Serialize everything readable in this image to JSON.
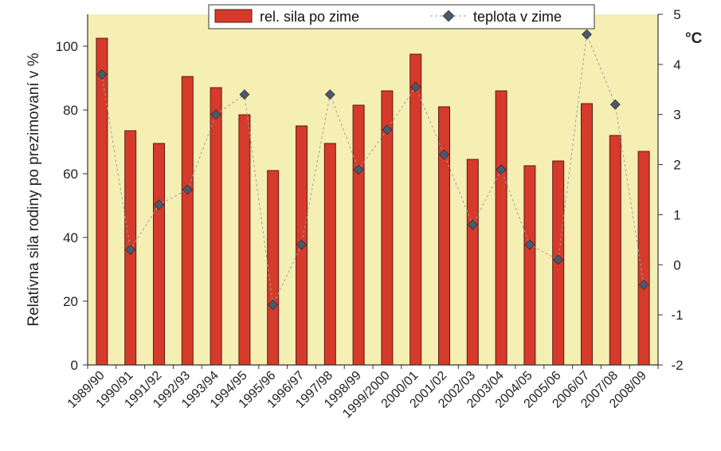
{
  "chart_data": {
    "type": "bar",
    "categories": [
      "1989/90",
      "1990/91",
      "1991/92",
      "1992/93",
      "1993/94",
      "1994/95",
      "1995/96",
      "1996/97",
      "1997/98",
      "1998/99",
      "1999/2000",
      "2000/01",
      "2001/02",
      "2002/03",
      "2003/04",
      "2004/05",
      "2005/06",
      "2006/07",
      "2007/08",
      "2008/09"
    ],
    "series": [
      {
        "name": "rel. sila po zime",
        "kind": "bar",
        "axis": "left",
        "color": "#d63a2a",
        "values": [
          102.5,
          73.5,
          69.5,
          90.5,
          87,
          78.5,
          61,
          75,
          69.5,
          81.5,
          86,
          97.5,
          81,
          64.5,
          86,
          62.5,
          64,
          82,
          72,
          67
        ]
      },
      {
        "name": "teplota v zime",
        "kind": "line-marker",
        "axis": "right",
        "color": "#4a5a6e",
        "values": [
          3.8,
          0.3,
          1.2,
          1.5,
          3.0,
          3.4,
          -0.8,
          0.4,
          3.4,
          1.9,
          2.7,
          3.55,
          2.2,
          0.8,
          1.9,
          0.4,
          0.1,
          4.6,
          3.2,
          -0.4
        ]
      }
    ],
    "ylabel": "Relatívna sila rodiny po prezimovaní v %",
    "ylim": [
      0,
      110
    ],
    "yticks": [
      "0",
      "20",
      "40",
      "60",
      "80",
      "100"
    ],
    "y2label": "°C",
    "y2lim": [
      -2,
      5
    ],
    "y2ticks": [
      "-2",
      "-1",
      "0",
      "1",
      "2",
      "3",
      "4",
      "5"
    ],
    "legend_position": "top",
    "grid": false,
    "colors": {
      "plot_background": "#f6efb4",
      "bar": "#d63a2a",
      "bar_edge": "#5a1a12",
      "marker": "#4a5a6e",
      "line": "#9aa0a8"
    }
  }
}
